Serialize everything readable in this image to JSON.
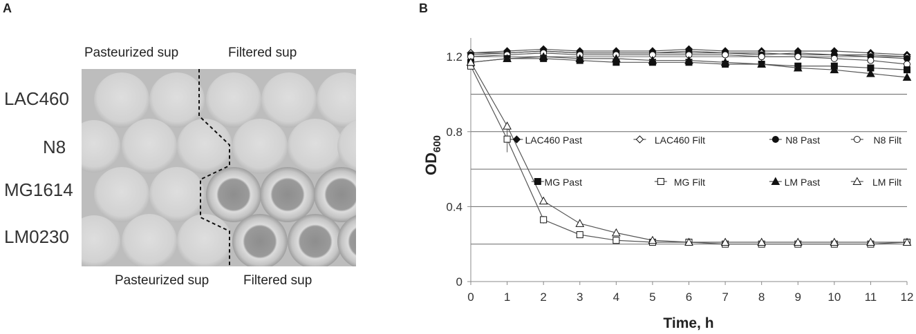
{
  "panel_a": {
    "letter": "A",
    "top_left_label": "Pasteurized sup",
    "top_right_label": "Filtered sup",
    "bottom_left_label": "Pasteurized sup",
    "bottom_right_label": "Filtered sup",
    "row_labels": [
      "LAC460",
      "N8",
      "MG1614",
      "LM0230"
    ]
  },
  "panel_b": {
    "letter": "B"
  },
  "chart_data": {
    "type": "line",
    "xlabel": "Time, h",
    "ylabel": "OD",
    "ylabel_sub": "600",
    "x": [
      0,
      1,
      2,
      3,
      4,
      5,
      6,
      7,
      8,
      9,
      10,
      11,
      12
    ],
    "xlim": [
      0,
      12
    ],
    "ylim": [
      0,
      1.2
    ],
    "yticks": [
      "0",
      "0.4",
      "0.8",
      "1.2"
    ],
    "grid": "horizontal",
    "legend_placement": "inside-center",
    "series": [
      {
        "name": "LAC460 Past",
        "marker": "diamond",
        "fill": "filled",
        "values": [
          1.22,
          1.23,
          1.24,
          1.23,
          1.23,
          1.23,
          1.24,
          1.23,
          1.23,
          1.23,
          1.23,
          1.22,
          1.21
        ]
      },
      {
        "name": "LAC460 Filt",
        "marker": "diamond",
        "fill": "open",
        "values": [
          1.22,
          1.22,
          1.23,
          1.22,
          1.22,
          1.22,
          1.22,
          1.22,
          1.22,
          1.21,
          1.21,
          1.21,
          1.2
        ]
      },
      {
        "name": "N8 Past",
        "marker": "circle",
        "fill": "filled",
        "values": [
          1.21,
          1.22,
          1.23,
          1.22,
          1.22,
          1.22,
          1.23,
          1.22,
          1.21,
          1.22,
          1.21,
          1.2,
          1.19
        ]
      },
      {
        "name": "N8 Filt",
        "marker": "circle",
        "fill": "open",
        "values": [
          1.2,
          1.21,
          1.22,
          1.21,
          1.21,
          1.21,
          1.21,
          1.21,
          1.2,
          1.2,
          1.19,
          1.18,
          1.16
        ]
      },
      {
        "name": "MG Past",
        "marker": "square",
        "fill": "filled",
        "values": [
          1.17,
          1.19,
          1.19,
          1.18,
          1.17,
          1.17,
          1.17,
          1.16,
          1.16,
          1.15,
          1.15,
          1.14,
          1.13
        ]
      },
      {
        "name": "MG Filt",
        "marker": "square",
        "fill": "open",
        "values": [
          1.15,
          0.76,
          0.33,
          0.25,
          0.22,
          0.21,
          0.21,
          0.2,
          0.2,
          0.2,
          0.2,
          0.2,
          0.21
        ]
      },
      {
        "name": "LM Past",
        "marker": "triangle",
        "fill": "filled",
        "values": [
          1.17,
          1.19,
          1.2,
          1.19,
          1.19,
          1.18,
          1.18,
          1.17,
          1.16,
          1.14,
          1.13,
          1.11,
          1.09
        ]
      },
      {
        "name": "LM Filt",
        "marker": "triangle",
        "fill": "open",
        "values": [
          1.17,
          0.83,
          0.43,
          0.31,
          0.26,
          0.22,
          0.21,
          0.21,
          0.21,
          0.21,
          0.21,
          0.21,
          0.21
        ]
      }
    ],
    "errors": {
      "MG Filt": [
        0,
        0.07,
        0.02,
        0,
        0,
        0,
        0,
        0,
        0,
        0,
        0,
        0,
        0
      ],
      "LM Filt": [
        0,
        0.02,
        0,
        0,
        0,
        0,
        0,
        0,
        0,
        0,
        0,
        0,
        0
      ]
    }
  },
  "colors": {
    "line": "#555555",
    "marker": "#111111",
    "grid": "#666666",
    "axis": "#888888"
  }
}
